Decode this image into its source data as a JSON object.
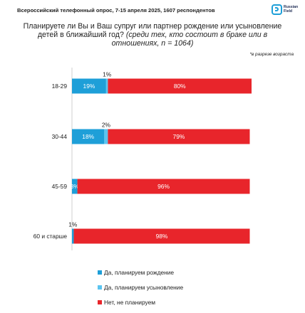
{
  "header": {
    "source": "Всероссийский телефонный опрос, 7-15 апреля 2025, 1607 респондентов",
    "logo_text": "Russian Field"
  },
  "title_main": "Планируете ли Вы и Ваш супруг или партнер рождение или усыновление детей в ближайший год?",
  "title_em": "(среди тех, кто состоит в браке или в отношениях, n = 1064)",
  "note": "*в разрезе возраста",
  "colors": {
    "birth": "#1e9fd8",
    "adoption": "#5bc4f0",
    "no": "#e8252b"
  },
  "chart_data": {
    "type": "bar",
    "orientation": "horizontal",
    "stacked": true,
    "title": "Планируете ли Вы и Ваш супруг или партнер рождение или усыновление детей в ближайший год? (среди тех, кто состоит в браке или в отношениях, n = 1064)",
    "categories": [
      "18-29",
      "30-44",
      "45-59",
      "60 и старше"
    ],
    "series": [
      {
        "name": "Да, планируем рождение",
        "values": [
          19,
          18,
          3,
          1
        ],
        "labels": [
          "19%",
          "18%",
          "3%",
          "1%"
        ]
      },
      {
        "name": "Да, планируем усыновление",
        "values": [
          1,
          2,
          0,
          0
        ],
        "labels": [
          "1%",
          "2%",
          "",
          ""
        ]
      },
      {
        "name": "Нет, не планируем",
        "values": [
          80,
          79,
          96,
          98
        ],
        "labels": [
          "80%",
          "79%",
          "96%",
          "98%"
        ]
      }
    ],
    "xlim": [
      0,
      100
    ],
    "legend": "bottom"
  }
}
